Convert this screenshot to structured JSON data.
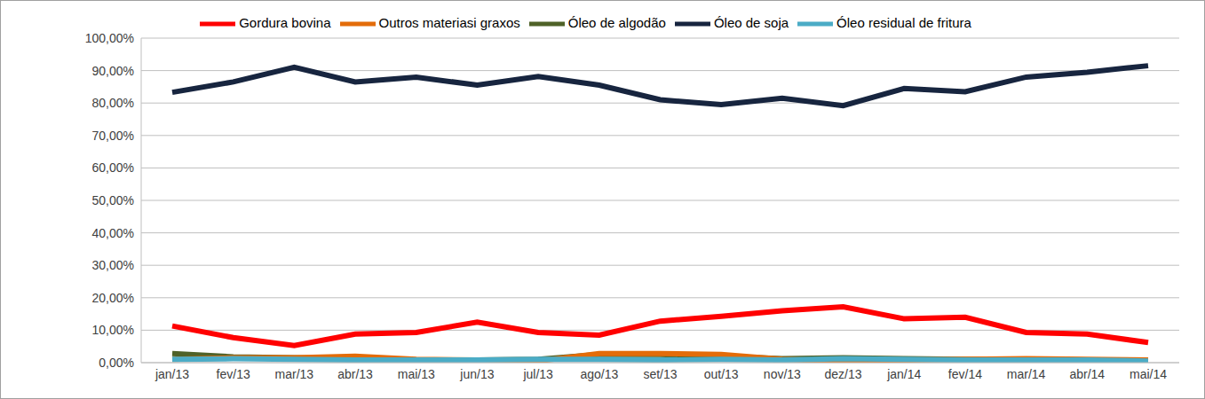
{
  "chart_data": {
    "type": "line",
    "categories": [
      "jan/13",
      "fev/13",
      "mar/13",
      "abr/13",
      "mai/13",
      "jun/13",
      "jul/13",
      "ago/13",
      "set/13",
      "out/13",
      "nov/13",
      "dez/13",
      "jan/14",
      "fev/14",
      "mar/14",
      "abr/14",
      "mai/14"
    ],
    "series": [
      {
        "name": "Óleo de soja",
        "color": "#17253f",
        "values": [
          83.3,
          86.5,
          91,
          86.5,
          88,
          85.5,
          88.2,
          85.5,
          81,
          79.5,
          81.5,
          79.2,
          84.5,
          83.5,
          88,
          89.5,
          91.5
        ]
      },
      {
        "name": "Gordura bovina",
        "color": "#ff0000",
        "values": [
          11.3,
          7.7,
          5.3,
          8.8,
          9.3,
          12.5,
          9.3,
          8.5,
          12.8,
          14.3,
          16,
          17.2,
          13.5,
          14,
          9.3,
          8.8,
          6.2
        ]
      },
      {
        "name": "Óleo de algodão",
        "color": "#4f6228",
        "values": [
          2.8,
          1.8,
          1.5,
          1.2,
          0.8,
          0.8,
          1.0,
          2.5,
          2.5,
          2.0,
          1.2,
          1.5,
          1.2,
          1.0,
          1.0,
          0.8,
          0.5
        ]
      },
      {
        "name": "Outros materiasi graxos",
        "color": "#e36c09",
        "values": [
          1.0,
          1.5,
          1.5,
          2.0,
          1.0,
          0.8,
          0.5,
          2.8,
          2.8,
          2.5,
          1.0,
          0.5,
          0.8,
          1.0,
          1.2,
          1.0,
          0.8
        ]
      },
      {
        "name": "Óleo residual de fritura",
        "color": "#4bacc6",
        "values": [
          1.0,
          1.2,
          1.0,
          0.8,
          0.8,
          0.8,
          1.0,
          1.0,
          0.8,
          1.0,
          0.8,
          1.2,
          1.0,
          0.8,
          0.8,
          0.8,
          0.5
        ]
      }
    ],
    "ylim": [
      0,
      100
    ],
    "yticks": [
      {
        "value": 0,
        "label": "0,00%"
      },
      {
        "value": 10,
        "label": "10,00%"
      },
      {
        "value": 20,
        "label": "20,00%"
      },
      {
        "value": 30,
        "label": "30,00%"
      },
      {
        "value": 40,
        "label": "40,00%"
      },
      {
        "value": 50,
        "label": "50,00%"
      },
      {
        "value": 60,
        "label": "60,00%"
      },
      {
        "value": 70,
        "label": "70,00%"
      },
      {
        "value": 80,
        "label": "80,00%"
      },
      {
        "value": 90,
        "label": "90,00%"
      },
      {
        "value": 100,
        "label": "100,00%"
      }
    ],
    "grid": true,
    "legend": "top"
  }
}
